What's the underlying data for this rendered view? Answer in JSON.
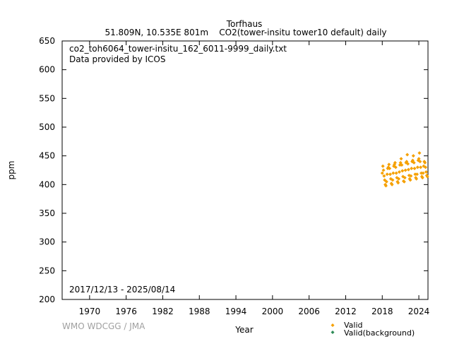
{
  "chart_data": {
    "type": "scatter",
    "title": "Torfhaus",
    "subtitle": "51.809N, 10.535E 801m    CO2(tower-insitu tower10 default) daily",
    "xlabel": "Year",
    "ylabel": "ppm",
    "xlim": [
      1965.5,
      2025.5
    ],
    "ylim": [
      200,
      650
    ],
    "x_ticks": [
      1970,
      1976,
      1982,
      1988,
      1994,
      2000,
      2006,
      2012,
      2018,
      2024
    ],
    "y_ticks": [
      200,
      250,
      300,
      350,
      400,
      450,
      500,
      550,
      600,
      650
    ],
    "grid": false,
    "annotations": {
      "filename": "co2_toh6064_tower-insitu_162_6011-9999_daily.txt",
      "provider": "Data provided by ICOS",
      "period": "2017/12/13 - 2025/08/14",
      "credit": "WMO WDCGG / JMA"
    },
    "legend_position": "bottom-right",
    "series": [
      {
        "name": "Valid",
        "color": "#f5a000",
        "points": [
          [
            2018.0,
            420
          ],
          [
            2018.1,
            432
          ],
          [
            2018.2,
            425
          ],
          [
            2018.3,
            415
          ],
          [
            2018.4,
            408
          ],
          [
            2018.5,
            400
          ],
          [
            2018.6,
            398
          ],
          [
            2018.7,
            405
          ],
          [
            2018.8,
            418
          ],
          [
            2018.9,
            428
          ],
          [
            2019.0,
            430
          ],
          [
            2019.1,
            435
          ],
          [
            2019.2,
            428
          ],
          [
            2019.3,
            418
          ],
          [
            2019.4,
            410
          ],
          [
            2019.5,
            402
          ],
          [
            2019.6,
            400
          ],
          [
            2019.7,
            408
          ],
          [
            2019.8,
            420
          ],
          [
            2019.9,
            432
          ],
          [
            2020.0,
            435
          ],
          [
            2020.1,
            438
          ],
          [
            2020.2,
            430
          ],
          [
            2020.3,
            420
          ],
          [
            2020.4,
            412
          ],
          [
            2020.5,
            405
          ],
          [
            2020.6,
            403
          ],
          [
            2020.7,
            410
          ],
          [
            2020.8,
            422
          ],
          [
            2020.9,
            434
          ],
          [
            2021.0,
            438
          ],
          [
            2021.1,
            445
          ],
          [
            2021.2,
            434
          ],
          [
            2021.3,
            424
          ],
          [
            2021.4,
            414
          ],
          [
            2021.5,
            406
          ],
          [
            2021.6,
            405
          ],
          [
            2021.7,
            412
          ],
          [
            2021.8,
            425
          ],
          [
            2021.9,
            438
          ],
          [
            2022.0,
            440
          ],
          [
            2022.1,
            452
          ],
          [
            2022.2,
            436
          ],
          [
            2022.3,
            426
          ],
          [
            2022.4,
            416
          ],
          [
            2022.5,
            410
          ],
          [
            2022.6,
            408
          ],
          [
            2022.7,
            415
          ],
          [
            2022.8,
            428
          ],
          [
            2022.9,
            440
          ],
          [
            2023.0,
            442
          ],
          [
            2023.1,
            450
          ],
          [
            2023.2,
            438
          ],
          [
            2023.3,
            428
          ],
          [
            2023.4,
            418
          ],
          [
            2023.5,
            412
          ],
          [
            2023.6,
            410
          ],
          [
            2023.7,
            418
          ],
          [
            2023.8,
            430
          ],
          [
            2023.9,
            442
          ],
          [
            2024.0,
            445
          ],
          [
            2024.1,
            455
          ],
          [
            2024.2,
            440
          ],
          [
            2024.3,
            430
          ],
          [
            2024.4,
            420
          ],
          [
            2024.5,
            414
          ],
          [
            2024.6,
            412
          ],
          [
            2024.7,
            420
          ],
          [
            2024.8,
            432
          ],
          [
            2024.9,
            440
          ],
          [
            2025.0,
            438
          ],
          [
            2025.1,
            430
          ],
          [
            2025.2,
            422
          ],
          [
            2025.3,
            416
          ],
          [
            2025.4,
            414
          ]
        ]
      },
      {
        "name": "Valid(background)",
        "color": "#2e8b57",
        "points": []
      }
    ]
  }
}
